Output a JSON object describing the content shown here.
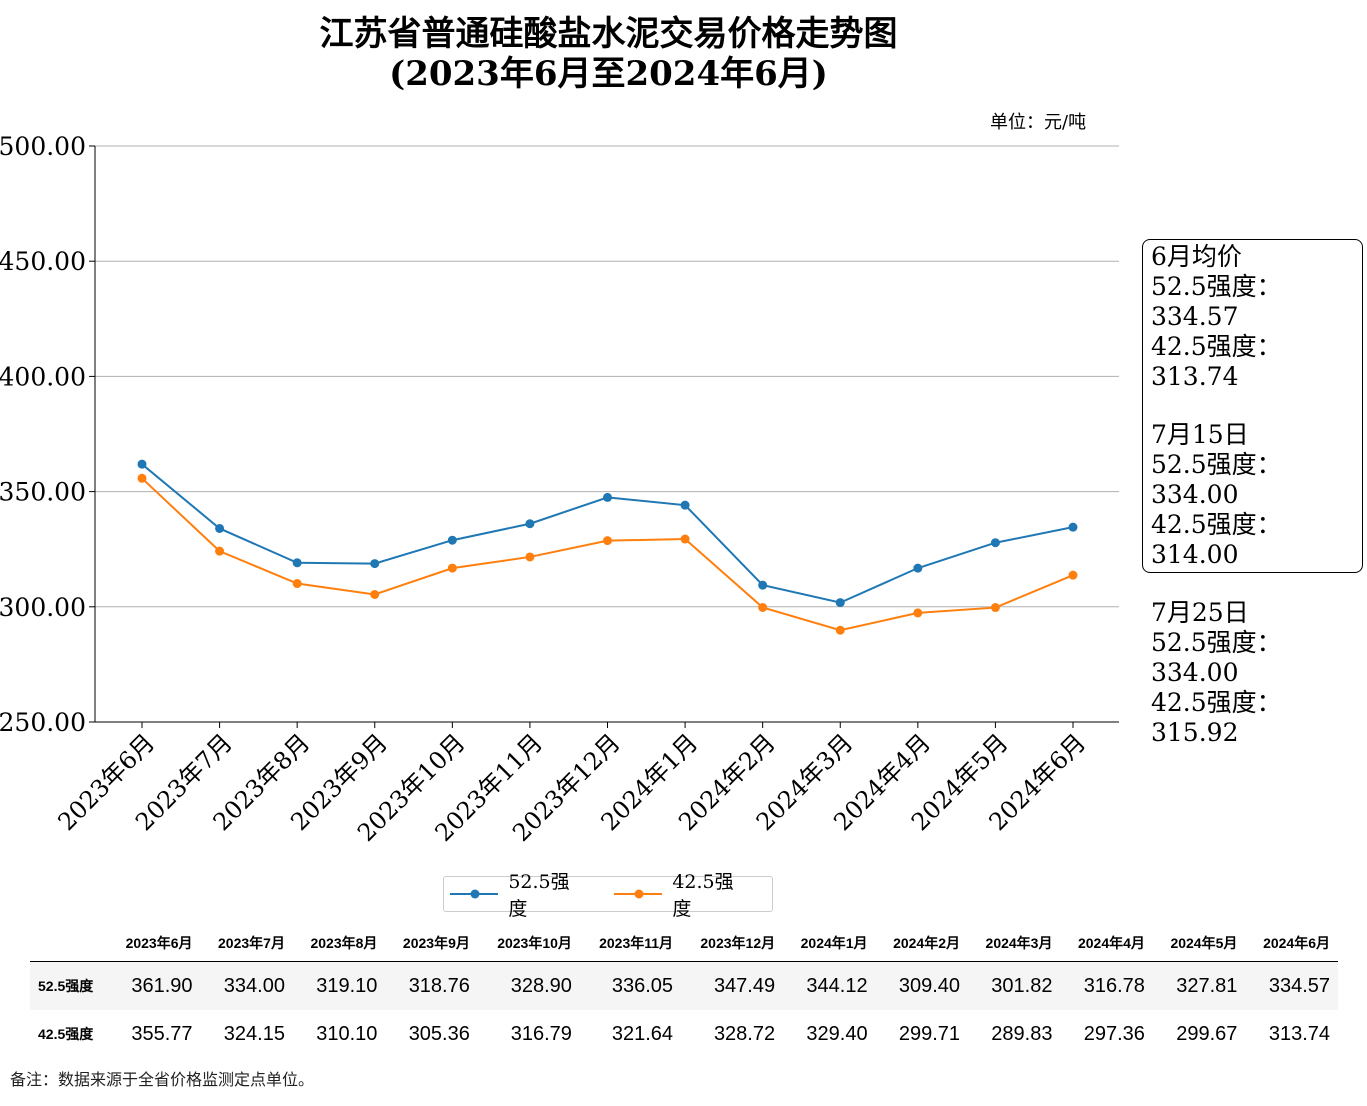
{
  "chart_data": {
    "type": "line",
    "title": "江苏省普通硅酸盐水泥交易价格走势图",
    "subtitle": "(2023年6月至2024年6月)",
    "unit": "单位：元/吨",
    "categories": [
      "2023年6月",
      "2023年7月",
      "2023年8月",
      "2023年9月",
      "2023年10月",
      "2023年11月",
      "2023年12月",
      "2024年1月",
      "2024年2月",
      "2024年3月",
      "2024年4月",
      "2024年5月",
      "2024年6月"
    ],
    "series": [
      {
        "name": "52.5强度",
        "color": "#1f77b4",
        "values": [
          361.9,
          334.0,
          319.1,
          318.76,
          328.9,
          336.05,
          347.49,
          344.12,
          309.4,
          301.82,
          316.78,
          327.81,
          334.57
        ]
      },
      {
        "name": "42.5强度",
        "color": "#ff7f0e",
        "values": [
          355.77,
          324.15,
          310.1,
          305.36,
          316.79,
          321.64,
          328.72,
          329.4,
          299.71,
          289.83,
          297.36,
          299.67,
          313.74
        ]
      }
    ],
    "ylim": [
      250,
      500
    ],
    "yticks": [
      "250.00",
      "300.00",
      "350.00",
      "400.00",
      "450.00",
      "500.00"
    ],
    "grid": "horizontal",
    "legend": "bottom-center"
  },
  "note_box": [
    "6月均价",
    "52.5强度：334.57",
    "42.5强度：313.74",
    "",
    "7月15日",
    "52.5强度：334.00",
    "42.5强度：314.00",
    "",
    "7月25日",
    "52.5强度：334.00",
    "42.5强度：315.92"
  ],
  "table": {
    "row_labels": [
      "52.5强度",
      "42.5强度"
    ]
  },
  "footnote": "备注：数据来源于全省价格监测定点单位。"
}
